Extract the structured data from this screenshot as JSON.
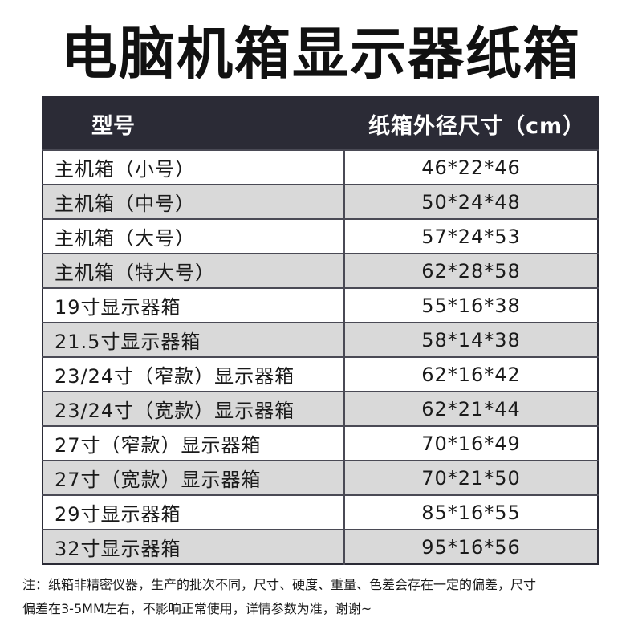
{
  "title": "电脑机箱显示器纸箱",
  "table": {
    "headers": {
      "model": "型号",
      "size": "纸箱外径尺寸（cm）"
    },
    "rows": [
      {
        "model": "主机箱（小号）",
        "size": "46*22*46"
      },
      {
        "model": "主机箱（中号）",
        "size": "50*24*48"
      },
      {
        "model": "主机箱（大号）",
        "size": "57*24*53"
      },
      {
        "model": "主机箱（特大号）",
        "size": "62*28*58"
      },
      {
        "model": "19寸显示器箱",
        "size": "55*16*38"
      },
      {
        "model": "21.5寸显示器箱",
        "size": "58*14*38"
      },
      {
        "model": "23/24寸（窄款）显示器箱",
        "size": "62*16*42"
      },
      {
        "model": "23/24寸（宽款）显示器箱",
        "size": "62*21*44"
      },
      {
        "model": "27寸（窄款）显示器箱",
        "size": "70*16*49"
      },
      {
        "model": "27寸（宽款）显示器箱",
        "size": "70*21*50"
      },
      {
        "model": "29寸显示器箱",
        "size": "85*16*55"
      },
      {
        "model": "32寸显示器箱",
        "size": "95*16*56"
      }
    ]
  },
  "note": {
    "line1": "注：纸箱非精密仪器，生产的批次不同，尺寸、硬度、重量、色差会存在一定的偏差，尺寸",
    "line2": "偏差在3-5MM左右，不影响正常使用，详情参数为准，谢谢~"
  },
  "colors": {
    "header_bg": "#2b2b36",
    "row_gray": "#d9d9d9",
    "row_white": "#ffffff"
  }
}
